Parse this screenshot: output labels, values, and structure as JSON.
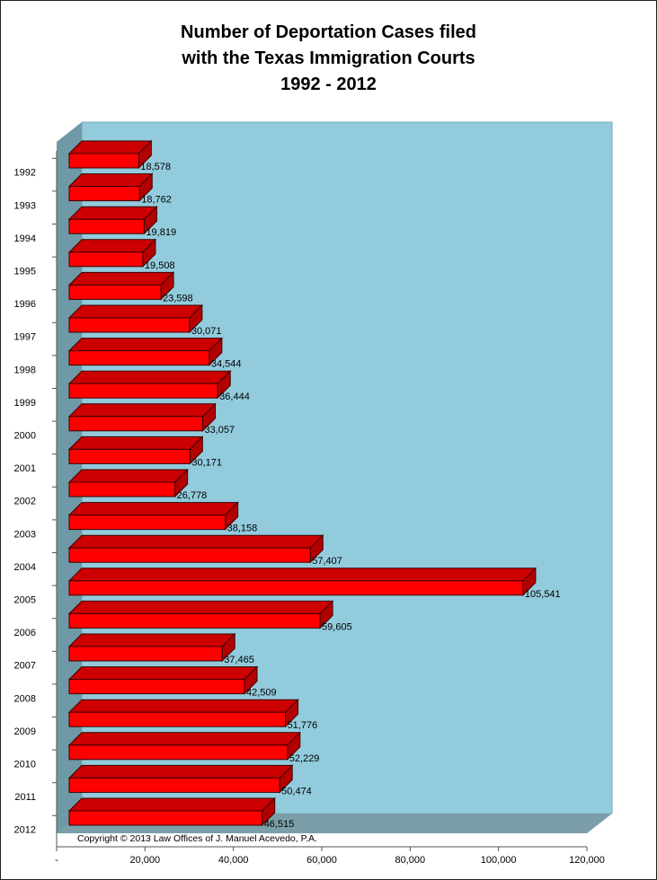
{
  "chart_data": {
    "type": "bar",
    "orientation": "horizontal",
    "style": "3d",
    "title_lines": [
      "Number of Deportation Cases filed",
      "with the Texas Immigration Courts",
      "1992 - 2012"
    ],
    "categories": [
      "1992",
      "1993",
      "1994",
      "1995",
      "1996",
      "1997",
      "1998",
      "1999",
      "2000",
      "2001",
      "2002",
      "2003",
      "2004",
      "2005",
      "2006",
      "2007",
      "2008",
      "2009",
      "2010",
      "2011",
      "2012"
    ],
    "values": [
      18578,
      18762,
      19819,
      19508,
      23598,
      30071,
      34544,
      36444,
      33057,
      30171,
      26778,
      38158,
      57407,
      105541,
      59605,
      37465,
      42509,
      51776,
      52229,
      50474,
      46515
    ],
    "data_labels": [
      "18,578",
      "18,762",
      "19,819",
      "19,508",
      "23,598",
      "30,071",
      "34,544",
      "36,444",
      "33,057",
      "30,171",
      "26,778",
      "38,158",
      "57,407",
      "105,541",
      "59,605",
      "37,465",
      "42,509",
      "51,776",
      "52,229",
      "50,474",
      "46,515"
    ],
    "x_ticks": [
      0,
      20000,
      40000,
      60000,
      80000,
      100000,
      120000
    ],
    "x_tick_labels": [
      "-",
      "20,000",
      "40,000",
      "60,000",
      "80,000",
      "100,000",
      "120,000"
    ],
    "xlim": [
      0,
      120000
    ],
    "xlabel": "",
    "ylabel": "",
    "grid": false,
    "legend": "none",
    "footnote": "Copyright © 2013 Law Offices of J. Manuel Acevedo, P.A.",
    "colors": {
      "bar_front": "#ff0000",
      "bar_top": "#cc0000",
      "bar_side": "#b30000",
      "bar_edge": "#3a0000",
      "back_wall": "#92cbdc",
      "side_wall": "#6f99a6",
      "floor": "#7b9ea8"
    }
  }
}
